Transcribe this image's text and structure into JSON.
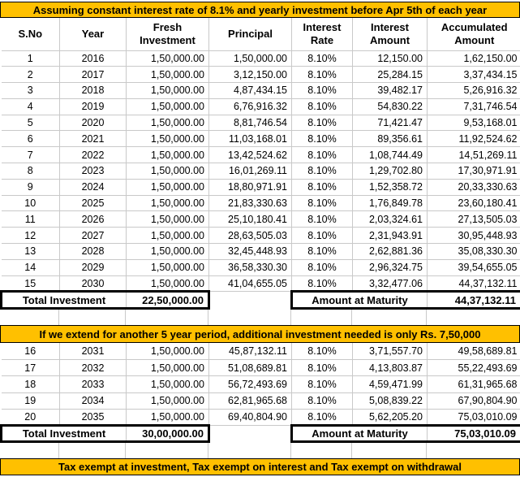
{
  "colors": {
    "banner_bg": "#FFC000",
    "grid_line": "#C9C9C9",
    "thick_border": "#000000",
    "text": "#000000"
  },
  "banner_top": {
    "text": "Assuming constant interest rate of 8.1% and yearly investment before Apr 5th of each year"
  },
  "banner_mid": {
    "text": "If we extend for another 5 year period, additional investment needed is only Rs. 7,50,000"
  },
  "banner_bottom": {
    "text": "Tax exempt at investment, Tax exempt on interest and Tax exempt on withdrawal"
  },
  "table": {
    "headers": [
      "S.No",
      "Year",
      "Fresh Investment",
      "Principal",
      "Interest Rate",
      "Interest Amount",
      "Accumulated Amount"
    ]
  },
  "section1": {
    "rows": [
      {
        "sno": "1",
        "year": "2016",
        "fresh": "1,50,000.00",
        "principal": "1,50,000.00",
        "rate": "8.10%",
        "interest": "12,150.00",
        "accumulated": "1,62,150.00"
      },
      {
        "sno": "2",
        "year": "2017",
        "fresh": "1,50,000.00",
        "principal": "3,12,150.00",
        "rate": "8.10%",
        "interest": "25,284.15",
        "accumulated": "3,37,434.15"
      },
      {
        "sno": "3",
        "year": "2018",
        "fresh": "1,50,000.00",
        "principal": "4,87,434.15",
        "rate": "8.10%",
        "interest": "39,482.17",
        "accumulated": "5,26,916.32"
      },
      {
        "sno": "4",
        "year": "2019",
        "fresh": "1,50,000.00",
        "principal": "6,76,916.32",
        "rate": "8.10%",
        "interest": "54,830.22",
        "accumulated": "7,31,746.54"
      },
      {
        "sno": "5",
        "year": "2020",
        "fresh": "1,50,000.00",
        "principal": "8,81,746.54",
        "rate": "8.10%",
        "interest": "71,421.47",
        "accumulated": "9,53,168.01"
      },
      {
        "sno": "6",
        "year": "2021",
        "fresh": "1,50,000.00",
        "principal": "11,03,168.01",
        "rate": "8.10%",
        "interest": "89,356.61",
        "accumulated": "11,92,524.62"
      },
      {
        "sno": "7",
        "year": "2022",
        "fresh": "1,50,000.00",
        "principal": "13,42,524.62",
        "rate": "8.10%",
        "interest": "1,08,744.49",
        "accumulated": "14,51,269.11"
      },
      {
        "sno": "8",
        "year": "2023",
        "fresh": "1,50,000.00",
        "principal": "16,01,269.11",
        "rate": "8.10%",
        "interest": "1,29,702.80",
        "accumulated": "17,30,971.91"
      },
      {
        "sno": "9",
        "year": "2024",
        "fresh": "1,50,000.00",
        "principal": "18,80,971.91",
        "rate": "8.10%",
        "interest": "1,52,358.72",
        "accumulated": "20,33,330.63"
      },
      {
        "sno": "10",
        "year": "2025",
        "fresh": "1,50,000.00",
        "principal": "21,83,330.63",
        "rate": "8.10%",
        "interest": "1,76,849.78",
        "accumulated": "23,60,180.41"
      },
      {
        "sno": "11",
        "year": "2026",
        "fresh": "1,50,000.00",
        "principal": "25,10,180.41",
        "rate": "8.10%",
        "interest": "2,03,324.61",
        "accumulated": "27,13,505.03"
      },
      {
        "sno": "12",
        "year": "2027",
        "fresh": "1,50,000.00",
        "principal": "28,63,505.03",
        "rate": "8.10%",
        "interest": "2,31,943.91",
        "accumulated": "30,95,448.93"
      },
      {
        "sno": "13",
        "year": "2028",
        "fresh": "1,50,000.00",
        "principal": "32,45,448.93",
        "rate": "8.10%",
        "interest": "2,62,881.36",
        "accumulated": "35,08,330.30"
      },
      {
        "sno": "14",
        "year": "2029",
        "fresh": "1,50,000.00",
        "principal": "36,58,330.30",
        "rate": "8.10%",
        "interest": "2,96,324.75",
        "accumulated": "39,54,655.05"
      },
      {
        "sno": "15",
        "year": "2030",
        "fresh": "1,50,000.00",
        "principal": "41,04,655.05",
        "rate": "8.10%",
        "interest": "3,32,477.06",
        "accumulated": "44,37,132.11"
      }
    ],
    "total_label": "Total Investment",
    "total_investment": "22,50,000.00",
    "maturity_label": "Amount at Maturity",
    "maturity_amount": "44,37,132.11"
  },
  "section2": {
    "rows": [
      {
        "sno": "16",
        "year": "2031",
        "fresh": "1,50,000.00",
        "principal": "45,87,132.11",
        "rate": "8.10%",
        "interest": "3,71,557.70",
        "accumulated": "49,58,689.81"
      },
      {
        "sno": "17",
        "year": "2032",
        "fresh": "1,50,000.00",
        "principal": "51,08,689.81",
        "rate": "8.10%",
        "interest": "4,13,803.87",
        "accumulated": "55,22,493.69"
      },
      {
        "sno": "18",
        "year": "2033",
        "fresh": "1,50,000.00",
        "principal": "56,72,493.69",
        "rate": "8.10%",
        "interest": "4,59,471.99",
        "accumulated": "61,31,965.68"
      },
      {
        "sno": "19",
        "year": "2034",
        "fresh": "1,50,000.00",
        "principal": "62,81,965.68",
        "rate": "8.10%",
        "interest": "5,08,839.22",
        "accumulated": "67,90,804.90"
      },
      {
        "sno": "20",
        "year": "2035",
        "fresh": "1,50,000.00",
        "principal": "69,40,804.90",
        "rate": "8.10%",
        "interest": "5,62,205.20",
        "accumulated": "75,03,010.09"
      }
    ],
    "total_label": "Total Investment",
    "total_investment": "30,00,000.00",
    "maturity_label": "Amount at Maturity",
    "maturity_amount": "75,03,010.09"
  }
}
